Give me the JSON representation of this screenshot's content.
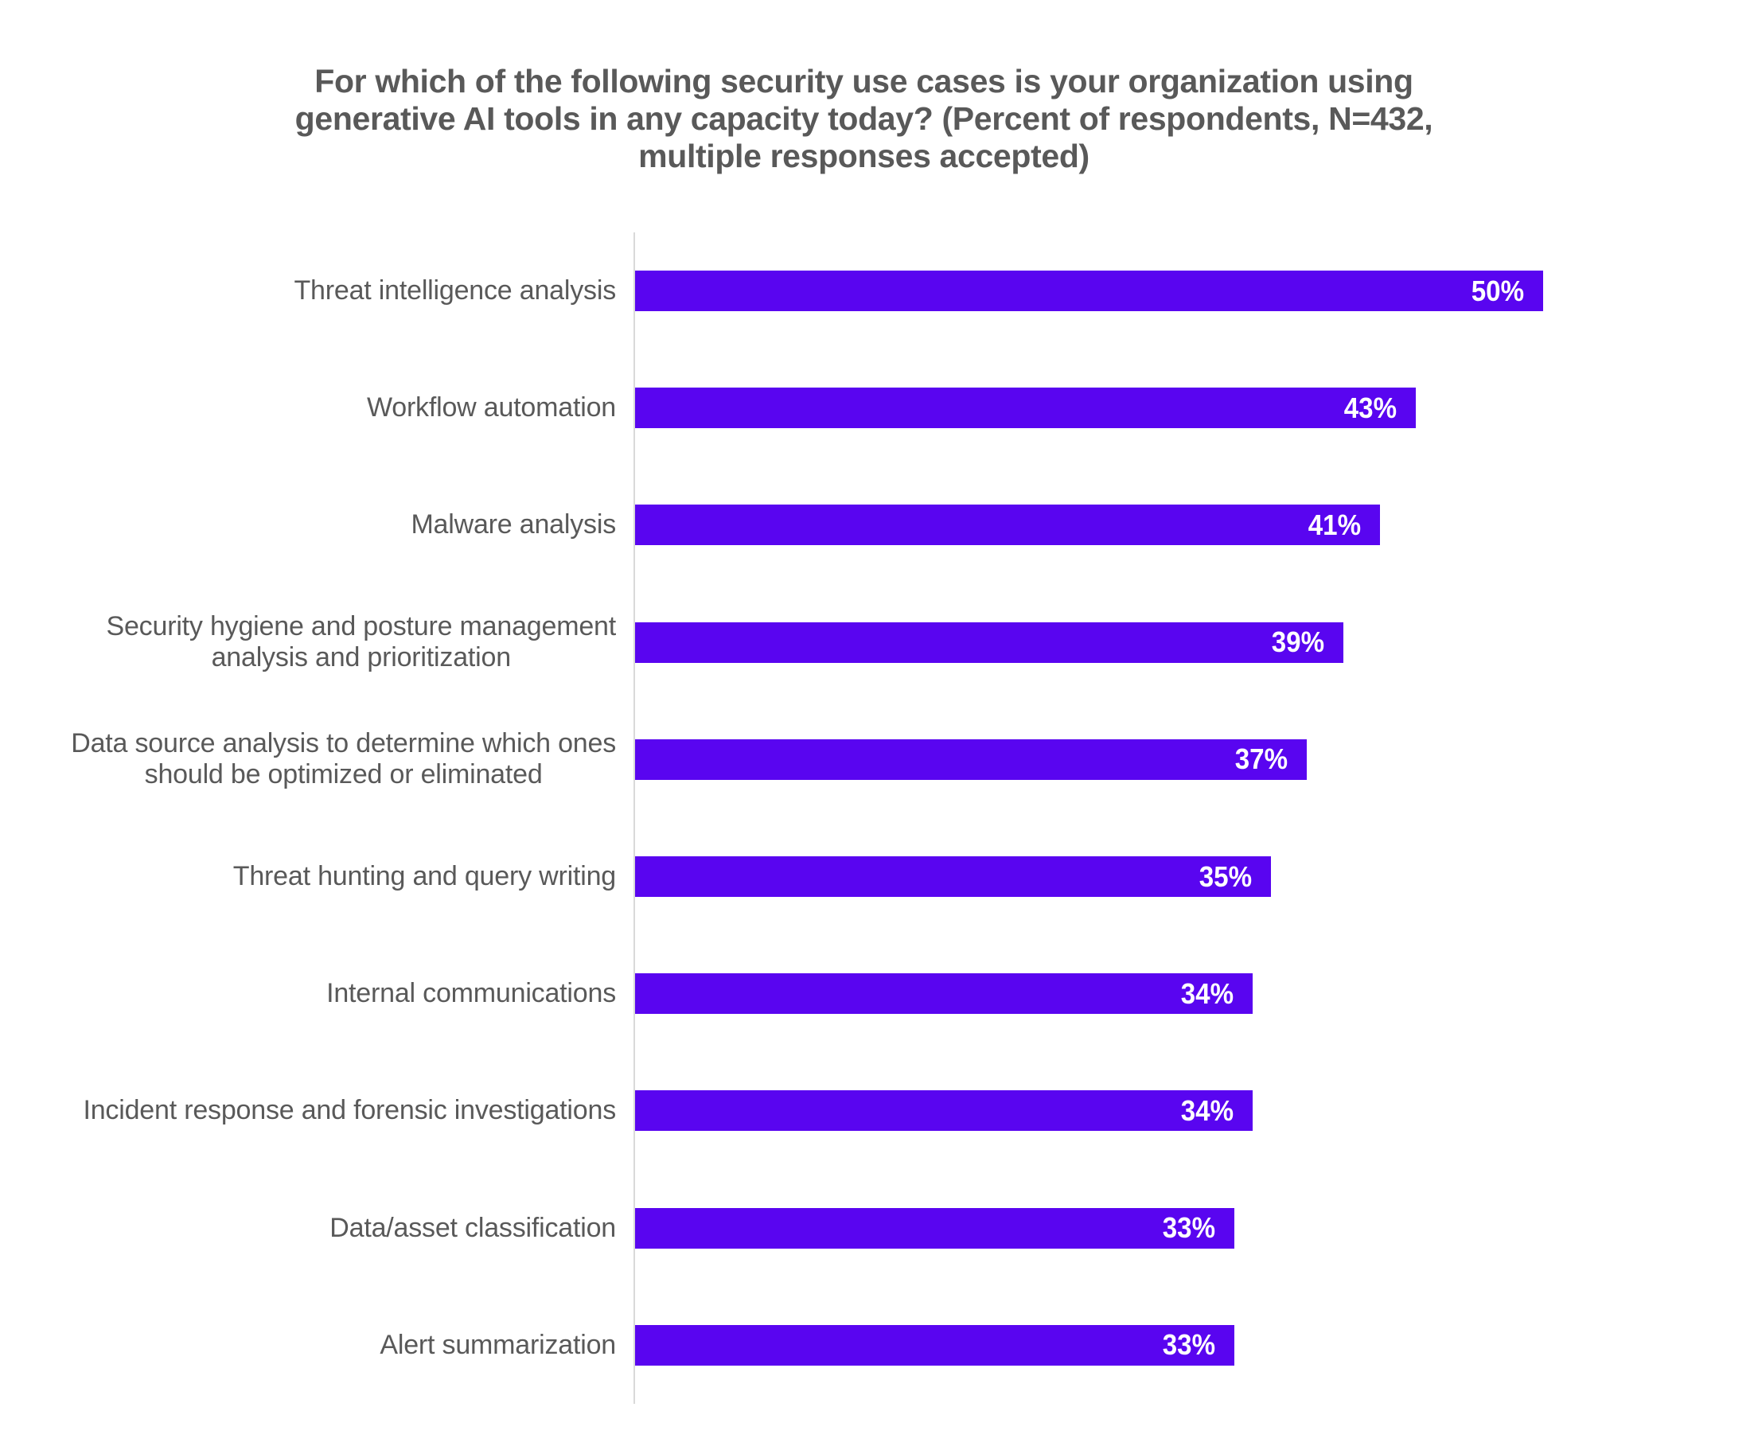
{
  "chart_data": {
    "type": "bar",
    "orientation": "horizontal",
    "title": "For which of the following security use cases is your organization using generative AI tools in any capacity today? (Percent of respondents, N=432, multiple responses accepted)",
    "title_lines": [
      "For which of the following security use cases is your organization using",
      "generative AI tools in any capacity today? (Percent of respondents, N=432,",
      "multiple responses accepted)"
    ],
    "categories": [
      "Threat intelligence analysis",
      "Workflow automation",
      "Malware analysis",
      "Security hygiene and posture management analysis and prioritization",
      "Data source analysis to determine which ones should be optimized or eliminated",
      "Threat hunting and query writing",
      "Internal communications",
      "Incident response and forensic investigations",
      "Data/asset classification",
      "Alert summarization"
    ],
    "categories_wrapped": [
      [
        "Threat intelligence analysis"
      ],
      [
        "Workflow automation"
      ],
      [
        "Malware analysis"
      ],
      [
        "Security hygiene and posture management",
        "analysis and prioritization"
      ],
      [
        "Data source analysis to determine which ones",
        "should be optimized or eliminated"
      ],
      [
        "Threat hunting and query writing"
      ],
      [
        "Internal communications"
      ],
      [
        "Incident response and forensic investigations"
      ],
      [
        "Data/asset classification"
      ],
      [
        "Alert summarization"
      ]
    ],
    "values": [
      50,
      43,
      41,
      39,
      37,
      35,
      34,
      34,
      33,
      33
    ],
    "value_labels": [
      "50%",
      "43%",
      "41%",
      "39%",
      "37%",
      "35%",
      "34%",
      "34%",
      "33%",
      "33%"
    ],
    "xlabel": "",
    "ylabel": "",
    "xlim": [
      0,
      62
    ],
    "grid": false,
    "legend": false,
    "bar_color": "#5905F0",
    "value_label_color": "#FFFFFF",
    "category_label_color": "#595959",
    "title_color": "#595959",
    "axis_line_color": "#D9D9D9"
  }
}
